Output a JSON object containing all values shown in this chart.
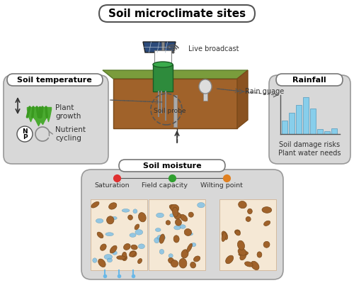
{
  "title": "Soil microclimate sites",
  "bg_color": "#ffffff",
  "panel_color": "#d8d8d8",
  "soil_color": "#a0622a",
  "soil_top_color": "#7a8c3c",
  "green_box_color": "#2e8b3c",
  "solar_panel_color": "#2b4a7a",
  "water_color": "#6ab8e8",
  "bar_values": [
    0.35,
    0.55,
    0.75,
    0.95,
    0.65,
    0.12,
    0.08,
    0.15
  ],
  "bar_color": "#87ceeb",
  "moisture_labels": [
    "Saturation",
    "Field capacity",
    "Wilting point"
  ],
  "moisture_colors": [
    "#e03030",
    "#30a030",
    "#e08020"
  ],
  "soil_temp_label": "Soil temperature",
  "rainfall_label": "Rainfall",
  "soil_moisture_label": "Soil moisture",
  "live_broadcast": "Live broadcast",
  "rain_gauge": "Rain guage",
  "soil_probe": "Soil probe",
  "plant_growth": "Plant\ngrowth",
  "nutrient_cycling": "Nutrient\ncycling",
  "soil_damage": "Soil damage risks\nPlant water needs"
}
